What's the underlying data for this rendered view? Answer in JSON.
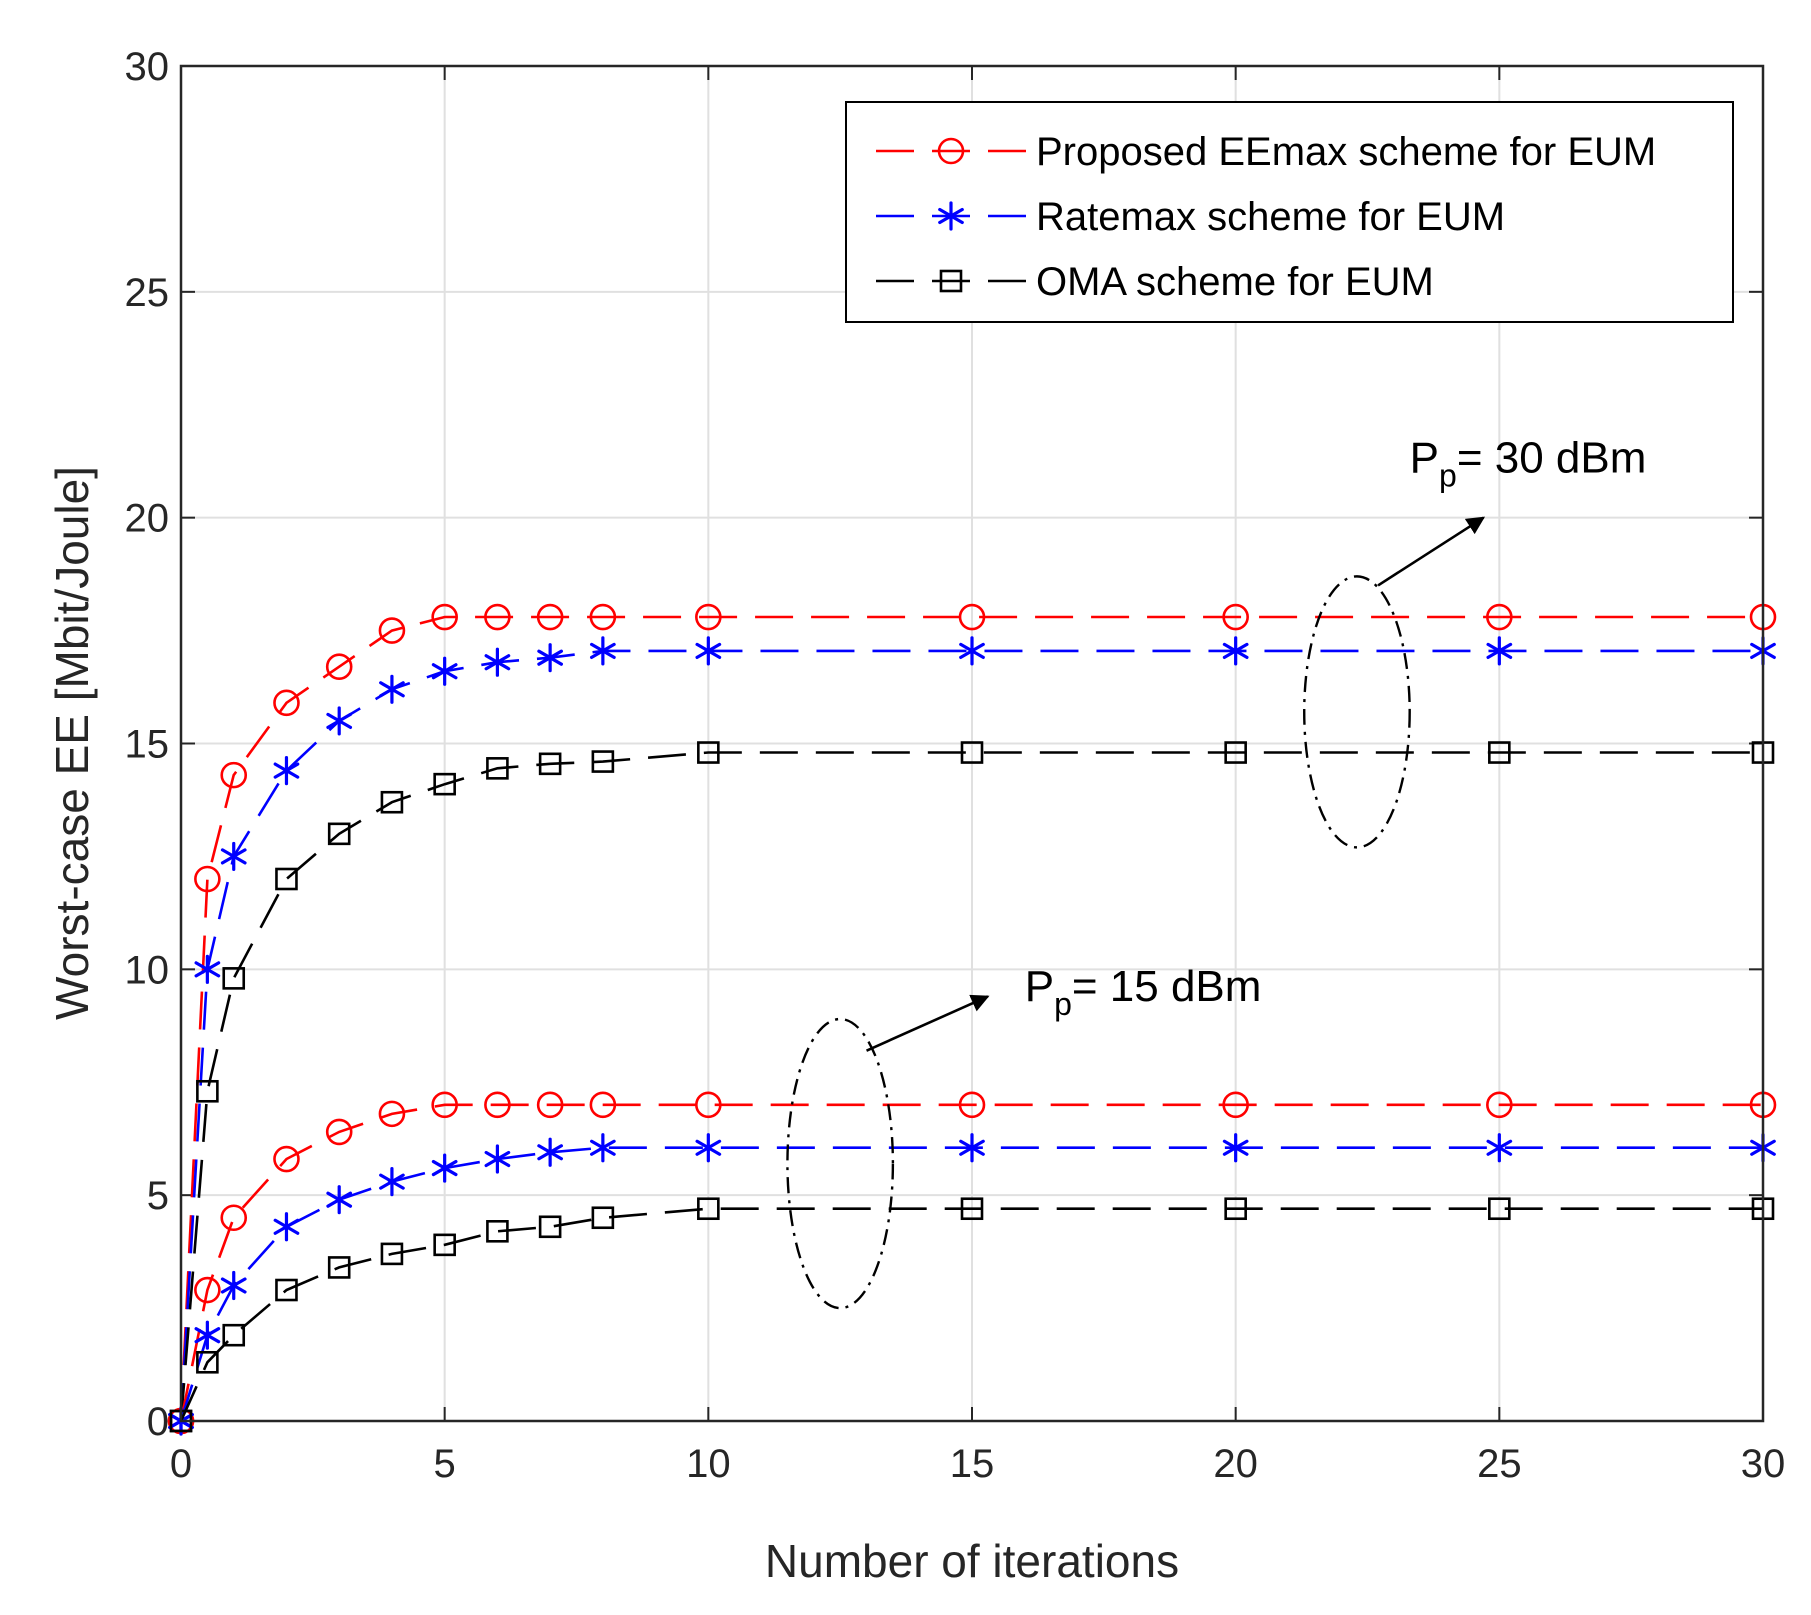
{
  "chart_data": {
    "type": "line",
    "xlabel": "Number of iterations",
    "ylabel": "Worst-case EE [Mbit/Joule]",
    "xlim": [
      0,
      30
    ],
    "ylim": [
      0,
      30
    ],
    "xticks": [
      0,
      5,
      10,
      15,
      20,
      25,
      30
    ],
    "yticks": [
      0,
      5,
      10,
      15,
      20,
      25,
      30
    ],
    "grid": true,
    "legend_position": "top-right",
    "x": [
      0,
      0.5,
      1,
      2,
      3,
      4,
      5,
      6,
      7,
      8,
      10,
      15,
      20,
      25,
      30
    ],
    "series": [
      {
        "name": "Proposed EEmax scheme for EUM",
        "group": "Pp=30dBm",
        "color": "#ff0000",
        "marker": "circle",
        "values": [
          0,
          12.0,
          14.3,
          15.9,
          16.7,
          17.5,
          17.8,
          17.8,
          17.8,
          17.8,
          17.8,
          17.8,
          17.8,
          17.8,
          17.8
        ]
      },
      {
        "name": "Ratemax scheme for EUM",
        "group": "Pp=30dBm",
        "color": "#0000ff",
        "marker": "asterisk",
        "values": [
          0,
          10.0,
          12.5,
          14.4,
          15.5,
          16.2,
          16.6,
          16.8,
          16.9,
          17.05,
          17.05,
          17.05,
          17.05,
          17.05,
          17.05
        ]
      },
      {
        "name": "OMA scheme for EUM",
        "group": "Pp=30dBm",
        "color": "#000000",
        "marker": "square",
        "values": [
          0,
          7.3,
          9.8,
          12.0,
          13.0,
          13.7,
          14.1,
          14.45,
          14.55,
          14.6,
          14.8,
          14.8,
          14.8,
          14.8,
          14.8
        ]
      },
      {
        "name": "Proposed EEmax scheme for EUM",
        "group": "Pp=15dBm",
        "color": "#ff0000",
        "marker": "circle",
        "values": [
          0,
          2.9,
          4.5,
          5.8,
          6.4,
          6.8,
          7.0,
          7.0,
          7.0,
          7.0,
          7.0,
          7.0,
          7.0,
          7.0,
          7.0
        ]
      },
      {
        "name": "Ratemax scheme for EUM",
        "group": "Pp=15dBm",
        "color": "#0000ff",
        "marker": "asterisk",
        "values": [
          0,
          1.9,
          3.0,
          4.3,
          4.9,
          5.3,
          5.6,
          5.8,
          5.95,
          6.05,
          6.05,
          6.05,
          6.05,
          6.05,
          6.05
        ]
      },
      {
        "name": "OMA scheme for EUM",
        "group": "Pp=15dBm",
        "color": "#000000",
        "marker": "square",
        "values": [
          0,
          1.3,
          1.9,
          2.9,
          3.4,
          3.7,
          3.9,
          4.2,
          4.3,
          4.5,
          4.7,
          4.7,
          4.7,
          4.7,
          4.7
        ]
      }
    ],
    "legend": [
      {
        "label": "Proposed EEmax scheme for EUM",
        "color": "#ff0000",
        "marker": "circle"
      },
      {
        "label": "Ratemax scheme for EUM",
        "color": "#0000ff",
        "marker": "asterisk"
      },
      {
        "label": "OMA scheme for EUM",
        "color": "#000000",
        "marker": "square"
      }
    ],
    "annotations": [
      {
        "main": "P",
        "sub": "p",
        "rest": "= 30 dBm",
        "ellipse_center": [
          22.3,
          15.7
        ],
        "ellipse_radius": [
          1.0,
          3.0
        ],
        "arrow_from": [
          22.7,
          18.5
        ],
        "arrow_to": [
          24.7,
          20.0
        ],
        "text_at": [
          23.3,
          21.0
        ]
      },
      {
        "main": "P",
        "sub": "p",
        "rest": "= 15 dBm",
        "ellipse_center": [
          12.5,
          5.7
        ],
        "ellipse_radius": [
          1.0,
          3.2
        ],
        "arrow_from": [
          13.0,
          8.2
        ],
        "arrow_to": [
          15.3,
          9.4
        ],
        "text_at": [
          16.0,
          9.3
        ]
      }
    ]
  }
}
